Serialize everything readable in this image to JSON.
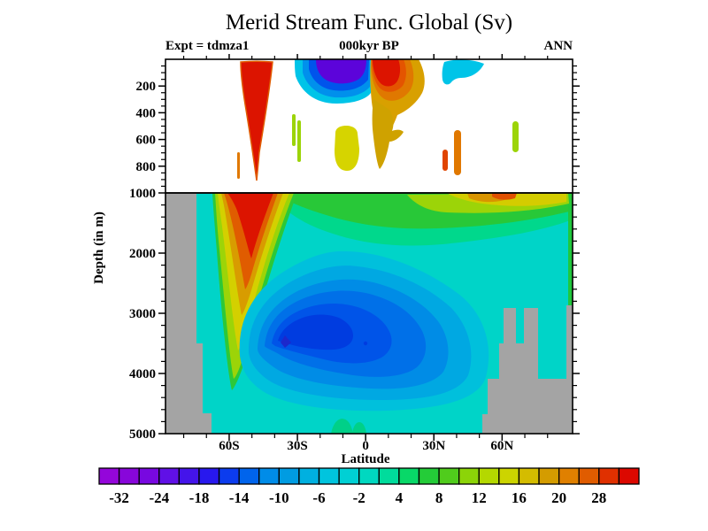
{
  "chart_data": {
    "type": "filled-contour",
    "title": "Merid Stream Func. Global (Sv)",
    "subtitle_left": "Expt = tdmza1",
    "subtitle_center": "000kyr BP",
    "subtitle_right": "ANN",
    "xlabel": "Latitude",
    "ylabel": "Depth (in m)",
    "units": "Sv",
    "background_color": "#ffffff",
    "field_background_color": "#00d4c8",
    "land_mask_color": "#a4a4a4",
    "x_axis": {
      "range_deg": [
        -88,
        91
      ],
      "minor_step_deg": 10,
      "ticks": [
        {
          "label": "60S",
          "lat": -60
        },
        {
          "label": "30S",
          "lat": -30
        },
        {
          "label": "0",
          "lat": 0
        },
        {
          "label": "30N",
          "lat": 30
        },
        {
          "label": "60N",
          "lat": 60
        }
      ]
    },
    "y_axis": {
      "upper_panel": {
        "depth_range_m": [
          0,
          1000
        ],
        "minor_step_m": 50,
        "ticks": [
          {
            "label": "200",
            "depth": 200
          },
          {
            "label": "400",
            "depth": 400
          },
          {
            "label": "600",
            "depth": 600
          },
          {
            "label": "800",
            "depth": 800
          }
        ]
      },
      "lower_panel": {
        "depth_range_m": [
          1000,
          5000
        ],
        "minor_step_m": 200,
        "ticks": [
          {
            "label": "1000",
            "depth": 1000
          },
          {
            "label": "2000",
            "depth": 2000
          },
          {
            "label": "3000",
            "depth": 3000
          },
          {
            "label": "4000",
            "depth": 4000
          },
          {
            "label": "5000",
            "depth": 5000
          }
        ]
      }
    },
    "colorbar": {
      "orientation": "horizontal",
      "cell_count": 27,
      "colors": [
        "#9406da",
        "#8806da",
        "#7808e0",
        "#6010e6",
        "#4414ea",
        "#2818ee",
        "#0c3cee",
        "#0064ec",
        "#008ce8",
        "#009ce2",
        "#00b0e0",
        "#00c4de",
        "#00d0d4",
        "#00d8c0",
        "#00dc9c",
        "#08d868",
        "#24cc38",
        "#50cc1c",
        "#8cd408",
        "#b4d800",
        "#ccd400",
        "#d4bc00",
        "#d49c00",
        "#e08000",
        "#e05c00",
        "#e03000",
        "#dc0800"
      ],
      "labels": [
        "-32",
        "-24",
        "-18",
        "-14",
        "-10",
        "-6",
        "-2",
        "4",
        "8",
        "12",
        "16",
        "20",
        "28"
      ],
      "label_boundary_index": [
        1,
        3,
        5,
        7,
        9,
        11,
        13,
        15,
        17,
        19,
        21,
        23,
        25
      ],
      "contour_levels_sv": [
        -36,
        -32,
        -28,
        -24,
        -21,
        -18,
        -16,
        -14,
        -12,
        -10,
        -8,
        -6,
        -4,
        -2,
        1,
        4,
        6,
        8,
        10,
        12,
        14,
        16,
        18,
        20,
        24,
        28,
        32,
        36
      ]
    },
    "features": [
      {
        "name": "deacon-cell",
        "lat": -50,
        "depth_m": [
          0,
          3500
        ],
        "value_sv": 28,
        "sign": "positive",
        "color": "red-orange plume"
      },
      {
        "name": "southern-subtropical-surface-cell",
        "lat": -18,
        "depth_m": [
          0,
          350
        ],
        "value_sv": -18,
        "sign": "negative",
        "color": "violet-blue-cyan"
      },
      {
        "name": "northern-tropical-surface-cell",
        "lat": 12,
        "depth_m": [
          0,
          500
        ],
        "value_sv": 28,
        "sign": "positive",
        "color": "red-orange-gold"
      },
      {
        "name": "northern-subpolar-surface-cell",
        "lat": 45,
        "depth_m": [
          0,
          180
        ],
        "value_sv": -4,
        "sign": "negative",
        "color": "cyan"
      },
      {
        "name": "deep-overturning-minimum",
        "lat": -35,
        "depth_m": [
          3400,
          4000
        ],
        "value_sv": -12,
        "sign": "negative",
        "color": "dark blue core"
      },
      {
        "name": "abyssal-background",
        "lat": [
          -80,
          90
        ],
        "depth_m": [
          1000,
          5000
        ],
        "value_sv": -2,
        "sign": "weak",
        "color": "cyan"
      },
      {
        "name": "upper-deep-positive-band",
        "lat": [
          -30,
          65
        ],
        "depth_m": [
          1000,
          1600
        ],
        "value_sv": 6,
        "sign": "positive",
        "color": "green-yellow"
      }
    ]
  }
}
